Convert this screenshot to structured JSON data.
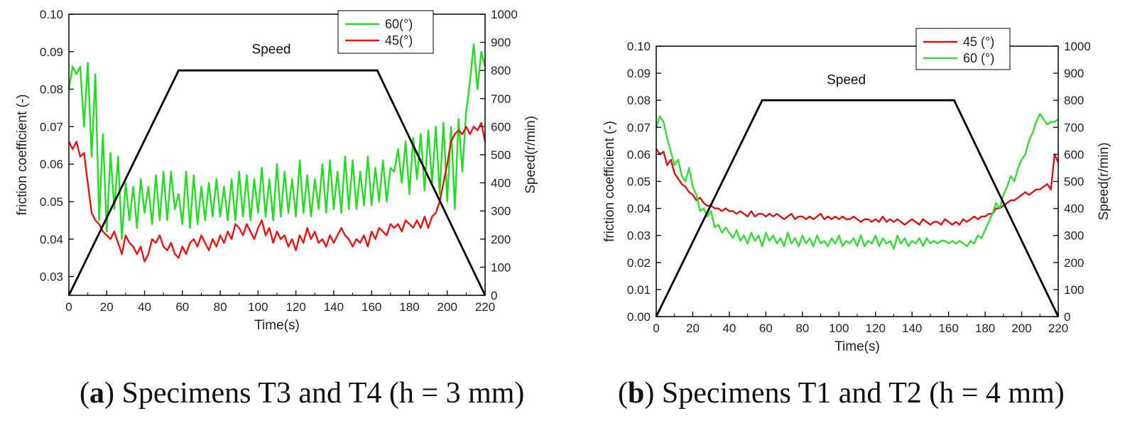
{
  "chart_data": [
    {
      "type": "line",
      "panel": "a",
      "caption_letter": "a",
      "caption_text": "Specimens T3 and T4 (h = 3 mm)",
      "xlabel": "Time(s)",
      "ylabel": "friction  coefficient (-)",
      "y2label": "Speed(r/min)",
      "xlim": [
        0,
        220
      ],
      "ylim": [
        0.025,
        0.1
      ],
      "y2lim": [
        0,
        1000
      ],
      "xticks": [
        "0",
        "20",
        "40",
        "60",
        "80",
        "100",
        "120",
        "140",
        "160",
        "180",
        "200",
        "220"
      ],
      "yticks": [
        "0.03",
        "0.04",
        "0.05",
        "0.06",
        "0.07",
        "0.08",
        "0.09",
        "0.10"
      ],
      "y2ticks": [
        "0",
        "100",
        "200",
        "300",
        "400",
        "500",
        "600",
        "700",
        "800",
        "900",
        "1000"
      ],
      "grid": false,
      "legend_position": "top-right",
      "legend": [
        "60(°)",
        "45(°)"
      ],
      "annotation": {
        "text": "Speed",
        "x": 107,
        "y2": 860
      },
      "speed": {
        "axis": "right",
        "color": "#000000",
        "x": [
          0,
          58,
          163,
          220
        ],
        "y": [
          0,
          800,
          800,
          0
        ]
      },
      "series": [
        {
          "name": "60(°)",
          "color": "#22dd22",
          "x": [
            0,
            2,
            4,
            6,
            8,
            10,
            12,
            14,
            16,
            18,
            20,
            22,
            24,
            26,
            28,
            30,
            32,
            34,
            36,
            38,
            40,
            42,
            44,
            46,
            48,
            50,
            52,
            54,
            56,
            58,
            60,
            62,
            64,
            66,
            68,
            70,
            72,
            74,
            76,
            78,
            80,
            82,
            84,
            86,
            88,
            90,
            92,
            94,
            96,
            98,
            100,
            102,
            104,
            106,
            108,
            110,
            112,
            114,
            116,
            118,
            120,
            122,
            124,
            126,
            128,
            130,
            132,
            134,
            136,
            138,
            140,
            142,
            144,
            146,
            148,
            150,
            152,
            154,
            156,
            158,
            160,
            162,
            164,
            166,
            168,
            170,
            172,
            174,
            176,
            178,
            180,
            182,
            184,
            186,
            188,
            190,
            192,
            194,
            196,
            198,
            200,
            202,
            204,
            206,
            208,
            210,
            212,
            214,
            216,
            218,
            220
          ],
          "values": [
            0.08,
            0.086,
            0.084,
            0.086,
            0.07,
            0.087,
            0.062,
            0.084,
            0.045,
            0.068,
            0.042,
            0.063,
            0.048,
            0.062,
            0.04,
            0.055,
            0.045,
            0.054,
            0.043,
            0.056,
            0.047,
            0.054,
            0.044,
            0.057,
            0.045,
            0.058,
            0.045,
            0.058,
            0.048,
            0.052,
            0.044,
            0.058,
            0.043,
            0.057,
            0.044,
            0.054,
            0.045,
            0.055,
            0.046,
            0.056,
            0.046,
            0.054,
            0.045,
            0.056,
            0.045,
            0.058,
            0.046,
            0.057,
            0.045,
            0.056,
            0.047,
            0.059,
            0.046,
            0.056,
            0.045,
            0.06,
            0.046,
            0.058,
            0.047,
            0.056,
            0.046,
            0.061,
            0.047,
            0.057,
            0.046,
            0.056,
            0.048,
            0.06,
            0.047,
            0.061,
            0.048,
            0.058,
            0.047,
            0.062,
            0.048,
            0.061,
            0.048,
            0.058,
            0.049,
            0.062,
            0.049,
            0.059,
            0.05,
            0.061,
            0.05,
            0.059,
            0.058,
            0.064,
            0.055,
            0.066,
            0.052,
            0.067,
            0.056,
            0.068,
            0.053,
            0.069,
            0.055,
            0.07,
            0.052,
            0.071,
            0.05,
            0.07,
            0.048,
            0.072,
            0.058,
            0.074,
            0.082,
            0.092,
            0.08,
            0.09,
            0.086
          ]
        },
        {
          "name": "45(°)",
          "color": "#ee1111",
          "x": [
            0,
            2,
            4,
            6,
            8,
            10,
            12,
            14,
            16,
            18,
            20,
            22,
            24,
            26,
            28,
            30,
            32,
            34,
            36,
            38,
            40,
            42,
            44,
            46,
            48,
            50,
            52,
            54,
            56,
            58,
            60,
            62,
            64,
            66,
            68,
            70,
            72,
            74,
            76,
            78,
            80,
            82,
            84,
            86,
            88,
            90,
            92,
            94,
            96,
            98,
            100,
            102,
            104,
            106,
            108,
            110,
            112,
            114,
            116,
            118,
            120,
            122,
            124,
            126,
            128,
            130,
            132,
            134,
            136,
            138,
            140,
            142,
            144,
            146,
            148,
            150,
            152,
            154,
            156,
            158,
            160,
            162,
            164,
            166,
            168,
            170,
            172,
            174,
            176,
            178,
            180,
            182,
            184,
            186,
            188,
            190,
            192,
            194,
            196,
            198,
            200,
            202,
            204,
            206,
            208,
            210,
            212,
            214,
            216,
            218,
            220
          ],
          "values": [
            0.066,
            0.064,
            0.066,
            0.062,
            0.063,
            0.055,
            0.047,
            0.045,
            0.044,
            0.042,
            0.041,
            0.04,
            0.042,
            0.039,
            0.036,
            0.041,
            0.039,
            0.038,
            0.036,
            0.038,
            0.034,
            0.036,
            0.04,
            0.039,
            0.041,
            0.038,
            0.037,
            0.039,
            0.036,
            0.035,
            0.038,
            0.036,
            0.039,
            0.04,
            0.038,
            0.041,
            0.039,
            0.037,
            0.04,
            0.038,
            0.041,
            0.039,
            0.042,
            0.04,
            0.044,
            0.043,
            0.041,
            0.044,
            0.042,
            0.04,
            0.043,
            0.045,
            0.041,
            0.043,
            0.039,
            0.042,
            0.04,
            0.041,
            0.038,
            0.04,
            0.037,
            0.041,
            0.039,
            0.043,
            0.04,
            0.042,
            0.039,
            0.04,
            0.038,
            0.041,
            0.039,
            0.041,
            0.043,
            0.041,
            0.04,
            0.038,
            0.04,
            0.039,
            0.041,
            0.038,
            0.042,
            0.04,
            0.043,
            0.042,
            0.041,
            0.044,
            0.043,
            0.044,
            0.042,
            0.045,
            0.044,
            0.043,
            0.045,
            0.043,
            0.046,
            0.043,
            0.046,
            0.047,
            0.05,
            0.055,
            0.06,
            0.066,
            0.068,
            0.069,
            0.068,
            0.07,
            0.068,
            0.07,
            0.069,
            0.071,
            0.066
          ]
        }
      ]
    },
    {
      "type": "line",
      "panel": "b",
      "caption_letter": "b",
      "caption_text": "Specimens T1 and T2 (h = 4 mm)",
      "xlabel": "Time(s)",
      "ylabel": "friction  coefficient (-)",
      "y2label": "Speed(r/min)",
      "xlim": [
        0,
        220
      ],
      "ylim": [
        0.0,
        0.1
      ],
      "y2lim": [
        0,
        1000
      ],
      "xticks": [
        "0",
        "20",
        "40",
        "60",
        "80",
        "100",
        "120",
        "140",
        "160",
        "180",
        "200",
        "220"
      ],
      "yticks": [
        "0.00",
        "0.01",
        "0.02",
        "0.03",
        "0.04",
        "0.05",
        "0.06",
        "0.07",
        "0.08",
        "0.09",
        "0.10"
      ],
      "y2ticks": [
        "0",
        "100",
        "200",
        "300",
        "400",
        "500",
        "600",
        "700",
        "800",
        "900",
        "1000"
      ],
      "grid": false,
      "legend_position": "top-right",
      "legend": [
        "45 (°)",
        "60 (°)"
      ],
      "annotation": {
        "text": "Speed",
        "x": 104,
        "y2": 860
      },
      "speed": {
        "axis": "right",
        "color": "#000000",
        "x": [
          0,
          58,
          163,
          220
        ],
        "y": [
          0,
          800,
          800,
          0
        ]
      },
      "series": [
        {
          "name": "45 (°)",
          "color": "#dd1111",
          "x": [
            0,
            2,
            4,
            6,
            8,
            10,
            12,
            14,
            16,
            18,
            20,
            22,
            24,
            26,
            28,
            30,
            32,
            34,
            36,
            38,
            40,
            42,
            44,
            46,
            48,
            50,
            52,
            54,
            56,
            58,
            60,
            62,
            64,
            66,
            68,
            70,
            72,
            74,
            76,
            78,
            80,
            82,
            84,
            86,
            88,
            90,
            92,
            94,
            96,
            98,
            100,
            102,
            104,
            106,
            108,
            110,
            112,
            114,
            116,
            118,
            120,
            122,
            124,
            126,
            128,
            130,
            132,
            134,
            136,
            138,
            140,
            142,
            144,
            146,
            148,
            150,
            152,
            154,
            156,
            158,
            160,
            162,
            164,
            166,
            168,
            170,
            172,
            174,
            176,
            178,
            180,
            182,
            184,
            186,
            188,
            190,
            192,
            194,
            196,
            198,
            200,
            202,
            204,
            206,
            208,
            210,
            212,
            214,
            216,
            218,
            220
          ],
          "values": [
            0.062,
            0.06,
            0.061,
            0.056,
            0.058,
            0.053,
            0.051,
            0.049,
            0.048,
            0.046,
            0.045,
            0.043,
            0.044,
            0.042,
            0.041,
            0.041,
            0.04,
            0.04,
            0.039,
            0.04,
            0.039,
            0.039,
            0.038,
            0.039,
            0.038,
            0.037,
            0.039,
            0.037,
            0.038,
            0.038,
            0.037,
            0.038,
            0.037,
            0.038,
            0.037,
            0.036,
            0.037,
            0.038,
            0.036,
            0.037,
            0.037,
            0.036,
            0.037,
            0.036,
            0.037,
            0.038,
            0.036,
            0.037,
            0.036,
            0.037,
            0.036,
            0.037,
            0.036,
            0.036,
            0.037,
            0.036,
            0.035,
            0.036,
            0.036,
            0.035,
            0.036,
            0.035,
            0.037,
            0.035,
            0.036,
            0.035,
            0.036,
            0.035,
            0.034,
            0.035,
            0.036,
            0.035,
            0.034,
            0.036,
            0.035,
            0.034,
            0.035,
            0.035,
            0.034,
            0.036,
            0.035,
            0.034,
            0.035,
            0.034,
            0.036,
            0.035,
            0.036,
            0.037,
            0.036,
            0.037,
            0.037,
            0.038,
            0.038,
            0.04,
            0.04,
            0.041,
            0.042,
            0.043,
            0.043,
            0.044,
            0.045,
            0.046,
            0.045,
            0.046,
            0.047,
            0.047,
            0.048,
            0.049,
            0.047,
            0.06,
            0.057
          ]
        },
        {
          "name": "60 (°)",
          "color": "#33dd33",
          "x": [
            0,
            2,
            4,
            6,
            8,
            10,
            12,
            14,
            16,
            18,
            20,
            22,
            24,
            26,
            28,
            30,
            32,
            34,
            36,
            38,
            40,
            42,
            44,
            46,
            48,
            50,
            52,
            54,
            56,
            58,
            60,
            62,
            64,
            66,
            68,
            70,
            72,
            74,
            76,
            78,
            80,
            82,
            84,
            86,
            88,
            90,
            92,
            94,
            96,
            98,
            100,
            102,
            104,
            106,
            108,
            110,
            112,
            114,
            116,
            118,
            120,
            122,
            124,
            126,
            128,
            130,
            132,
            134,
            136,
            138,
            140,
            142,
            144,
            146,
            148,
            150,
            152,
            154,
            156,
            158,
            160,
            162,
            164,
            166,
            168,
            170,
            172,
            174,
            176,
            178,
            180,
            182,
            184,
            186,
            188,
            190,
            192,
            194,
            196,
            198,
            200,
            202,
            204,
            206,
            208,
            210,
            212,
            214,
            216,
            218,
            220
          ],
          "values": [
            0.07,
            0.074,
            0.072,
            0.066,
            0.061,
            0.056,
            0.058,
            0.052,
            0.05,
            0.055,
            0.048,
            0.045,
            0.039,
            0.04,
            0.037,
            0.039,
            0.033,
            0.034,
            0.031,
            0.033,
            0.031,
            0.029,
            0.032,
            0.028,
            0.03,
            0.027,
            0.031,
            0.028,
            0.03,
            0.026,
            0.031,
            0.028,
            0.03,
            0.027,
            0.029,
            0.026,
            0.031,
            0.027,
            0.029,
            0.026,
            0.03,
            0.027,
            0.029,
            0.026,
            0.03,
            0.027,
            0.028,
            0.026,
            0.029,
            0.027,
            0.03,
            0.026,
            0.028,
            0.027,
            0.029,
            0.026,
            0.03,
            0.026,
            0.028,
            0.027,
            0.03,
            0.026,
            0.029,
            0.027,
            0.028,
            0.025,
            0.03,
            0.027,
            0.029,
            0.026,
            0.028,
            0.027,
            0.029,
            0.026,
            0.029,
            0.027,
            0.028,
            0.027,
            0.028,
            0.028,
            0.027,
            0.028,
            0.027,
            0.028,
            0.027,
            0.026,
            0.028,
            0.027,
            0.03,
            0.029,
            0.032,
            0.035,
            0.038,
            0.042,
            0.04,
            0.045,
            0.048,
            0.052,
            0.05,
            0.055,
            0.058,
            0.06,
            0.065,
            0.068,
            0.072,
            0.075,
            0.073,
            0.071,
            0.072,
            0.072,
            0.073
          ]
        }
      ]
    }
  ]
}
